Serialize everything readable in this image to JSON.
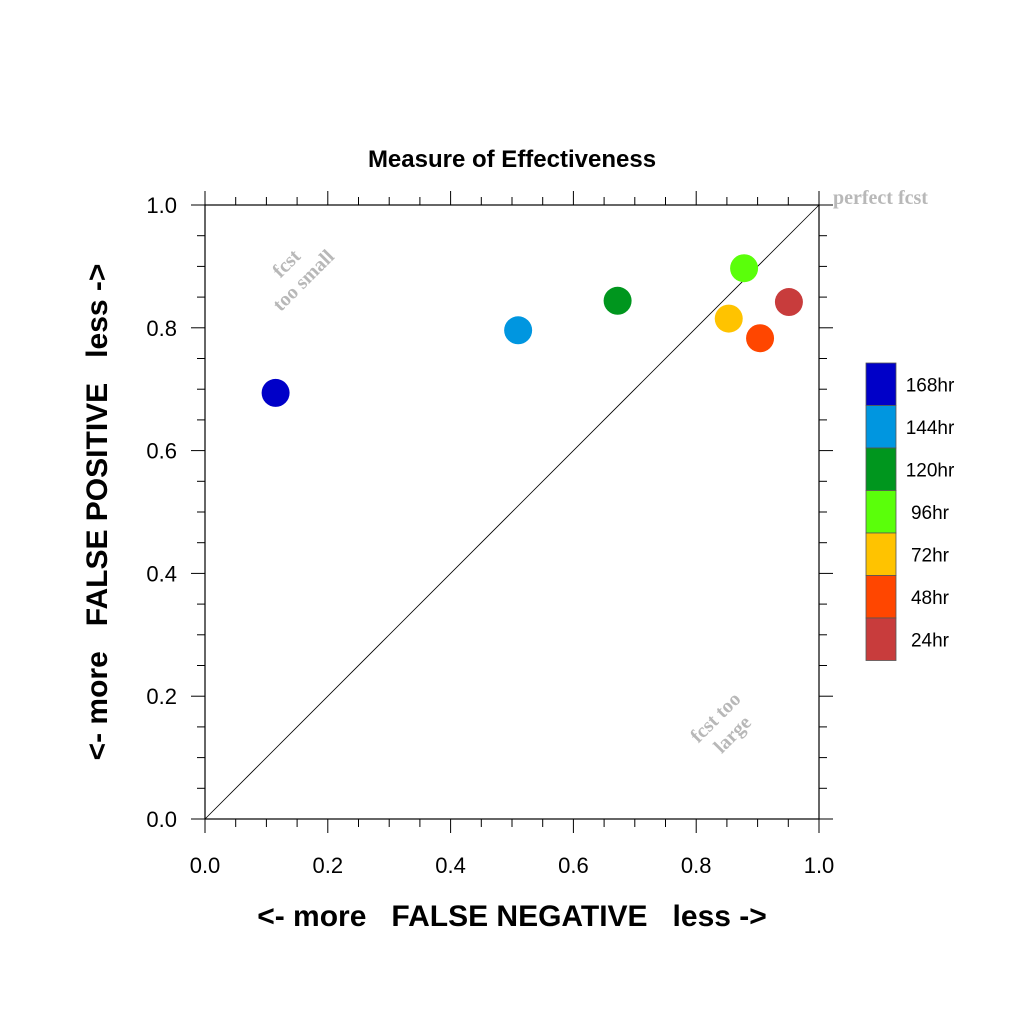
{
  "chart_data": {
    "type": "scatter",
    "title": "Measure of Effectiveness",
    "xlabel": "<- more   FALSE NEGATIVE   less ->",
    "ylabel": "<- more   FALSE POSITIVE   less ->",
    "xlim": [
      0.0,
      1.0
    ],
    "ylim": [
      0.0,
      1.0
    ],
    "x_ticks": [
      "0.0",
      "0.2",
      "0.4",
      "0.6",
      "0.8",
      "1.0"
    ],
    "y_ticks": [
      "0.0",
      "0.2",
      "0.4",
      "0.6",
      "0.8",
      "1.0"
    ],
    "grid": false,
    "legend_position": "right",
    "reference_line": "diagonal",
    "annotations": {
      "perfect": "perfect fcst",
      "too_small_1": "fcst",
      "too_small_2": "too small",
      "too_large_1": "fcst too",
      "too_large_2": "large"
    },
    "points": [
      {
        "name": "168hr",
        "x": 0.115,
        "y": 0.694,
        "color": "#0000c8"
      },
      {
        "name": "144hr",
        "x": 0.51,
        "y": 0.796,
        "color": "#0096e0"
      },
      {
        "name": "120hr",
        "x": 0.672,
        "y": 0.844,
        "color": "#00961e"
      },
      {
        "name": "96hr",
        "x": 0.878,
        "y": 0.897,
        "color": "#5aff0a"
      },
      {
        "name": "72hr",
        "x": 0.853,
        "y": 0.815,
        "color": "#ffc300"
      },
      {
        "name": "48hr",
        "x": 0.904,
        "y": 0.783,
        "color": "#ff4600"
      },
      {
        "name": "24hr",
        "x": 0.951,
        "y": 0.842,
        "color": "#c83c3c"
      }
    ]
  }
}
